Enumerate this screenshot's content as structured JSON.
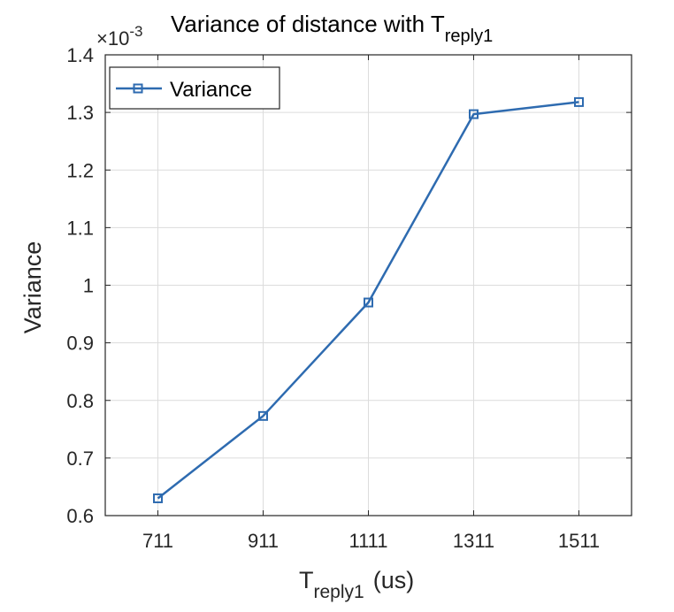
{
  "chart_data": {
    "type": "line",
    "title": "Variance of distance with T",
    "title_subscript": "reply1",
    "xlabel": "T",
    "xlabel_subscript": "reply1",
    "xlabel_unit": "(us)",
    "ylabel": "Variance",
    "y_exponent_label": "×10",
    "y_exponent": "-3",
    "x": [
      711,
      911,
      1111,
      1311,
      1511
    ],
    "x_tick_labels": [
      "711",
      "911",
      "1111",
      "1311",
      "1511"
    ],
    "xlim": [
      611,
      1611
    ],
    "ylim": [
      0.6,
      1.4
    ],
    "y_ticks": [
      0.6,
      0.7,
      0.8,
      0.9,
      1.0,
      1.1,
      1.2,
      1.3,
      1.4
    ],
    "y_tick_labels": [
      "0.6",
      "0.7",
      "0.8",
      "0.9",
      "1",
      "1.1",
      "1.2",
      "1.3",
      "1.4"
    ],
    "series": [
      {
        "name": "Variance",
        "color": "#2e6bb0",
        "marker": "square",
        "values": [
          0.63,
          0.773,
          0.97,
          1.297,
          1.318
        ]
      }
    ],
    "grid": true,
    "legend_position": "top-left"
  }
}
